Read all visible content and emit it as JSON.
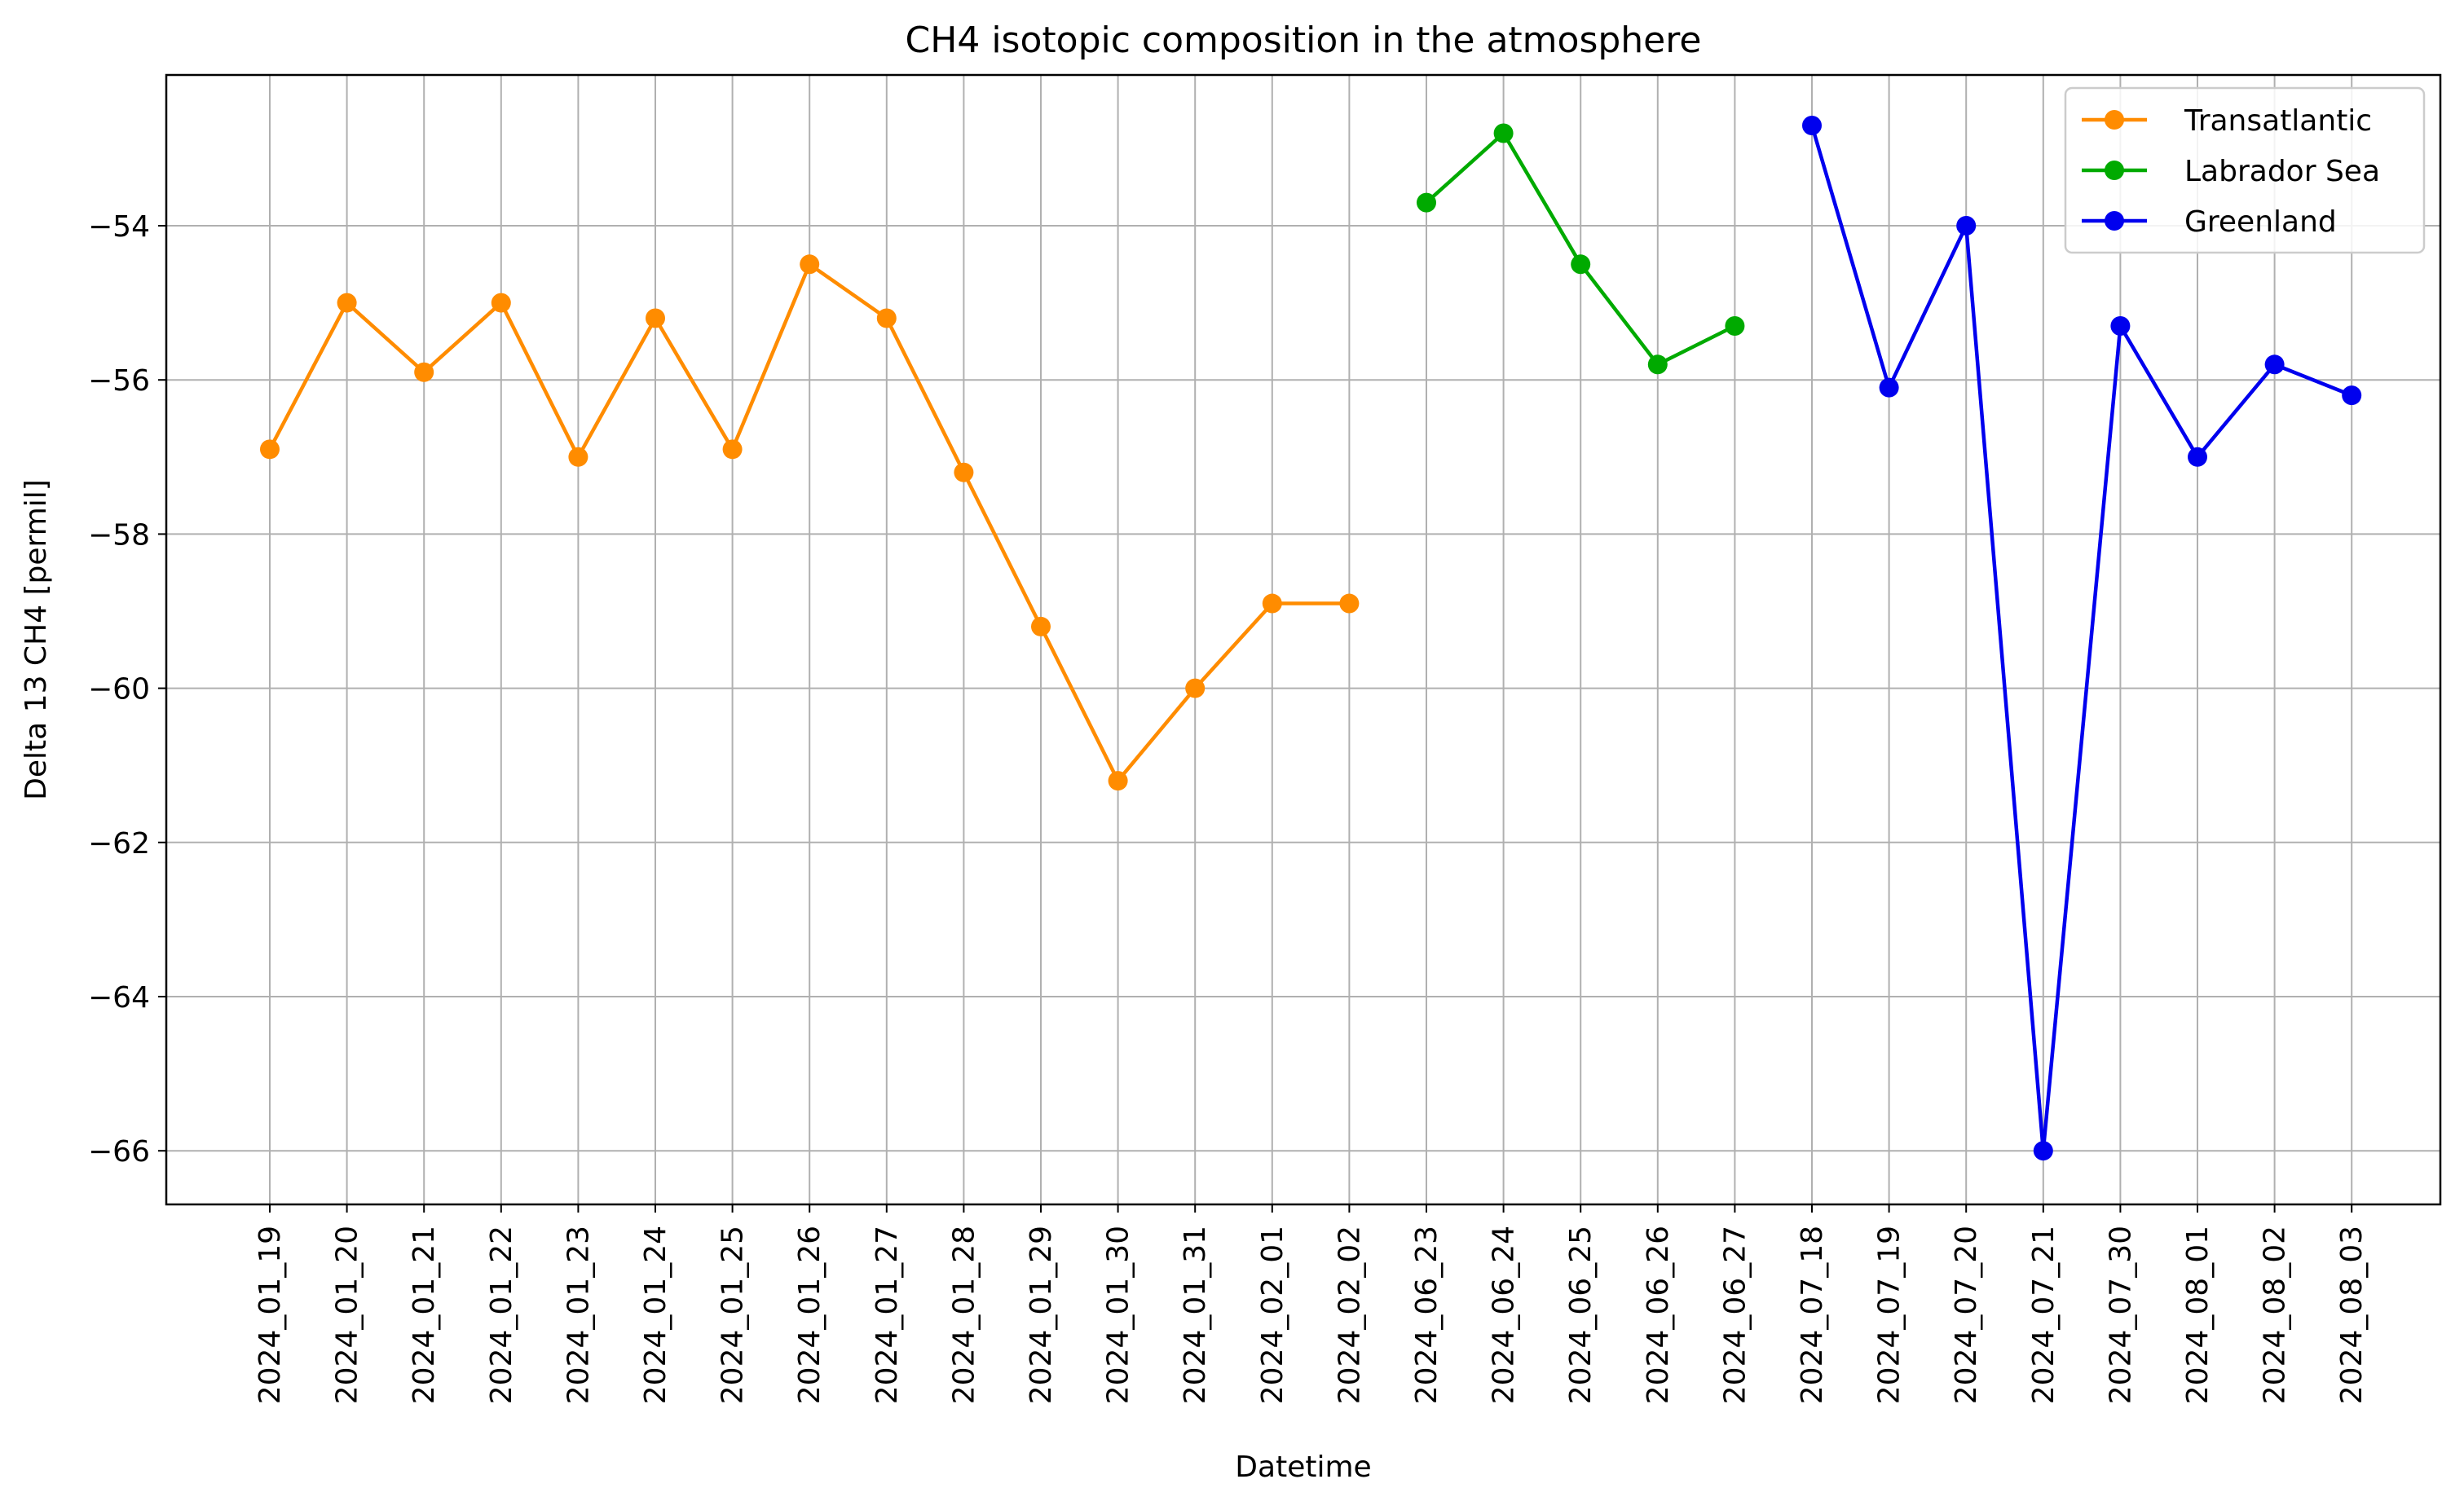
{
  "chart_data": {
    "type": "line",
    "title": "CH4 isotopic composition in the atmosphere",
    "xlabel": "Datetime",
    "ylabel": "Delta 13 CH4 [permil]",
    "categories": [
      "2024_01_19",
      "2024_01_20",
      "2024_01_21",
      "2024_01_22",
      "2024_01_23",
      "2024_01_24",
      "2024_01_25",
      "2024_01_26",
      "2024_01_27",
      "2024_01_28",
      "2024_01_29",
      "2024_01_30",
      "2024_01_31",
      "2024_02_01",
      "2024_02_02",
      "2024_06_23",
      "2024_06_24",
      "2024_06_25",
      "2024_06_26",
      "2024_06_27",
      "2024_07_18",
      "2024_07_19",
      "2024_07_20",
      "2024_07_21",
      "2024_07_30",
      "2024_08_01",
      "2024_08_02",
      "2024_08_03"
    ],
    "yticks": [
      -54,
      -56,
      -58,
      -60,
      -62,
      -64,
      -66
    ],
    "ytick_labels": [
      "−54",
      "−56",
      "−58",
      "−60",
      "−62",
      "−64",
      "−66"
    ],
    "ylim": [
      -66.7,
      -52.0
    ],
    "grid": true,
    "legend_position": "top-right",
    "series": [
      {
        "name": "Transatlantic",
        "color": "#ff8c00",
        "x": [
          "2024_01_19",
          "2024_01_20",
          "2024_01_21",
          "2024_01_22",
          "2024_01_23",
          "2024_01_24",
          "2024_01_25",
          "2024_01_26",
          "2024_01_27",
          "2024_01_28",
          "2024_01_29",
          "2024_01_30",
          "2024_01_31",
          "2024_02_01",
          "2024_02_02"
        ],
        "values": [
          -56.9,
          -55.0,
          -55.9,
          -55.0,
          -57.0,
          -55.2,
          -56.9,
          -54.5,
          -55.2,
          -57.2,
          -59.2,
          -61.2,
          -60.0,
          -58.9,
          -58.9
        ]
      },
      {
        "name": "Labrador Sea",
        "color": "#00aa00",
        "x": [
          "2024_06_23",
          "2024_06_24",
          "2024_06_25",
          "2024_06_26",
          "2024_06_27"
        ],
        "values": [
          -53.7,
          -52.8,
          -54.5,
          -55.8,
          -55.3
        ]
      },
      {
        "name": "Greenland",
        "color": "#0000ee",
        "x": [
          "2024_07_18",
          "2024_07_19",
          "2024_07_20",
          "2024_07_21",
          "2024_07_30",
          "2024_08_01",
          "2024_08_02",
          "2024_08_03"
        ],
        "values": [
          -52.7,
          -56.1,
          -54.0,
          -66.0,
          -55.3,
          -57.0,
          -55.8,
          -56.2
        ]
      }
    ]
  }
}
